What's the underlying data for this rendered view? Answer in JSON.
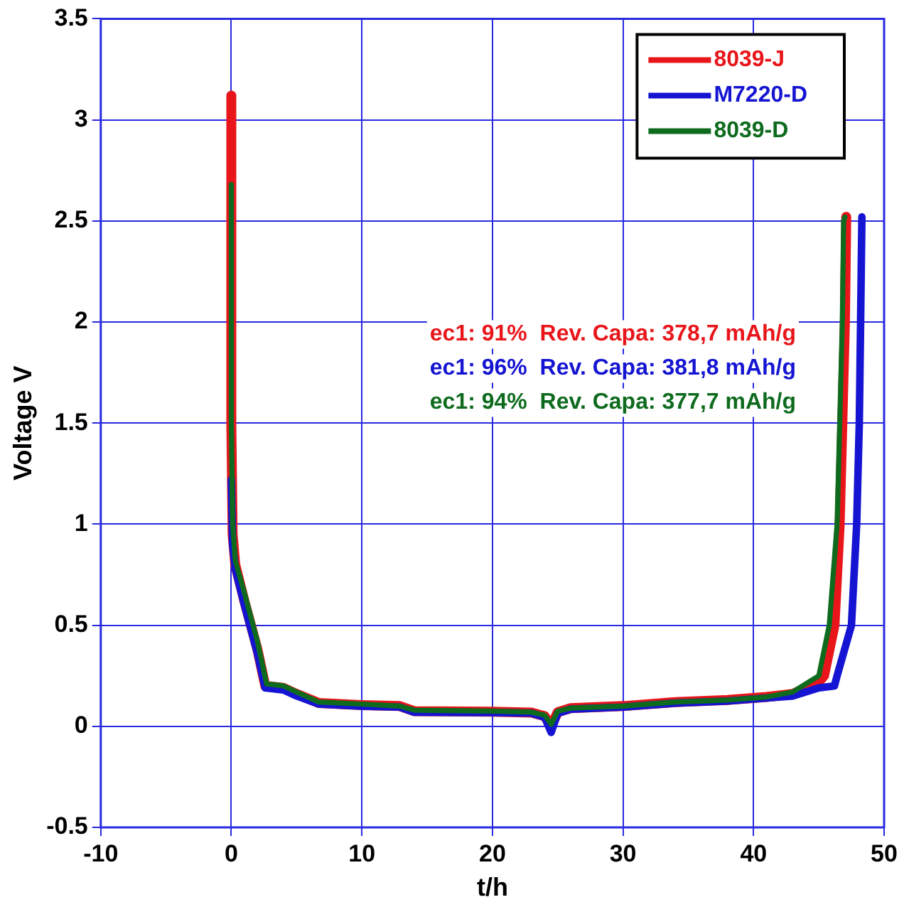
{
  "chart_data": {
    "type": "line",
    "xlabel": "t/h",
    "ylabel": "Voltage V",
    "xlim": [
      -10,
      50
    ],
    "xticks": [
      -10,
      0,
      10,
      20,
      30,
      40,
      50
    ],
    "ylim": [
      -0.5,
      3.5
    ],
    "yticks": [
      -0.5,
      0,
      0.5,
      1,
      1.5,
      2,
      2.5,
      3,
      3.5
    ],
    "grid": true,
    "legend": "top right",
    "marker": "none",
    "line_style": "solid",
    "annotations": [
      "ec1: 91%  Rev. Capa: 378,7 mAh/g",
      "ec1: 96%  Rev. Capa: 381,8 mAh/g",
      "ec1: 94%  Rev. Capa: 377,7 mAh/g"
    ],
    "series": [
      {
        "name": "8039-J",
        "color": "#e8161b",
        "x": [
          0,
          0,
          0.1,
          0.3,
          1,
          2,
          2.6,
          4,
          5,
          6.7,
          10,
          12.9,
          14,
          20,
          23,
          24,
          24.5,
          25,
          26,
          30,
          34,
          38,
          41,
          43,
          44,
          45,
          45.4,
          46.2,
          46.6,
          46.8,
          47,
          47.1
        ],
        "values": [
          3.12,
          1.5,
          0.95,
          0.8,
          0.62,
          0.38,
          0.2,
          0.19,
          0.16,
          0.115,
          0.105,
          0.1,
          0.075,
          0.072,
          0.068,
          0.05,
          0,
          0.07,
          0.09,
          0.1,
          0.12,
          0.13,
          0.145,
          0.16,
          0.19,
          0.22,
          0.25,
          0.5,
          1,
          1.5,
          2,
          2.52
        ]
      },
      {
        "name": "M7220-D",
        "color": "#1414d2",
        "x": [
          0,
          0.1,
          0.3,
          1,
          2,
          2.6,
          4,
          5,
          6.7,
          10,
          12.9,
          14,
          20,
          23,
          24,
          24.5,
          25,
          26,
          30,
          34,
          38,
          41,
          43,
          44,
          45,
          46.2,
          46.4,
          47.5,
          47.9,
          48.1,
          48.2,
          48.3
        ],
        "values": [
          1.22,
          0.9,
          0.78,
          0.6,
          0.36,
          0.19,
          0.18,
          0.15,
          0.11,
          0.1,
          0.095,
          0.07,
          0.068,
          0.065,
          0.045,
          -0.03,
          0.065,
          0.085,
          0.095,
          0.115,
          0.125,
          0.14,
          0.15,
          0.17,
          0.19,
          0.2,
          0.25,
          0.5,
          1,
          1.5,
          2,
          2.52
        ]
      },
      {
        "name": "8039-D",
        "color": "#0e6b1e",
        "x": [
          0,
          0,
          0.1,
          0.3,
          1,
          2,
          2.7,
          4,
          5,
          6.7,
          10,
          12.9,
          14,
          20,
          23,
          24,
          24.5,
          25,
          26,
          30,
          34,
          38,
          41,
          43,
          44,
          45,
          45.8,
          46.4,
          46.6,
          46.8,
          46.9,
          47
        ],
        "values": [
          2.68,
          1.5,
          1.0,
          0.82,
          0.66,
          0.42,
          0.21,
          0.2,
          0.17,
          0.12,
          0.11,
          0.1,
          0.08,
          0.075,
          0.07,
          0.055,
          0.01,
          0.075,
          0.09,
          0.1,
          0.12,
          0.13,
          0.145,
          0.17,
          0.21,
          0.25,
          0.5,
          1,
          1.5,
          2,
          2.5,
          2.52
        ]
      }
    ]
  }
}
